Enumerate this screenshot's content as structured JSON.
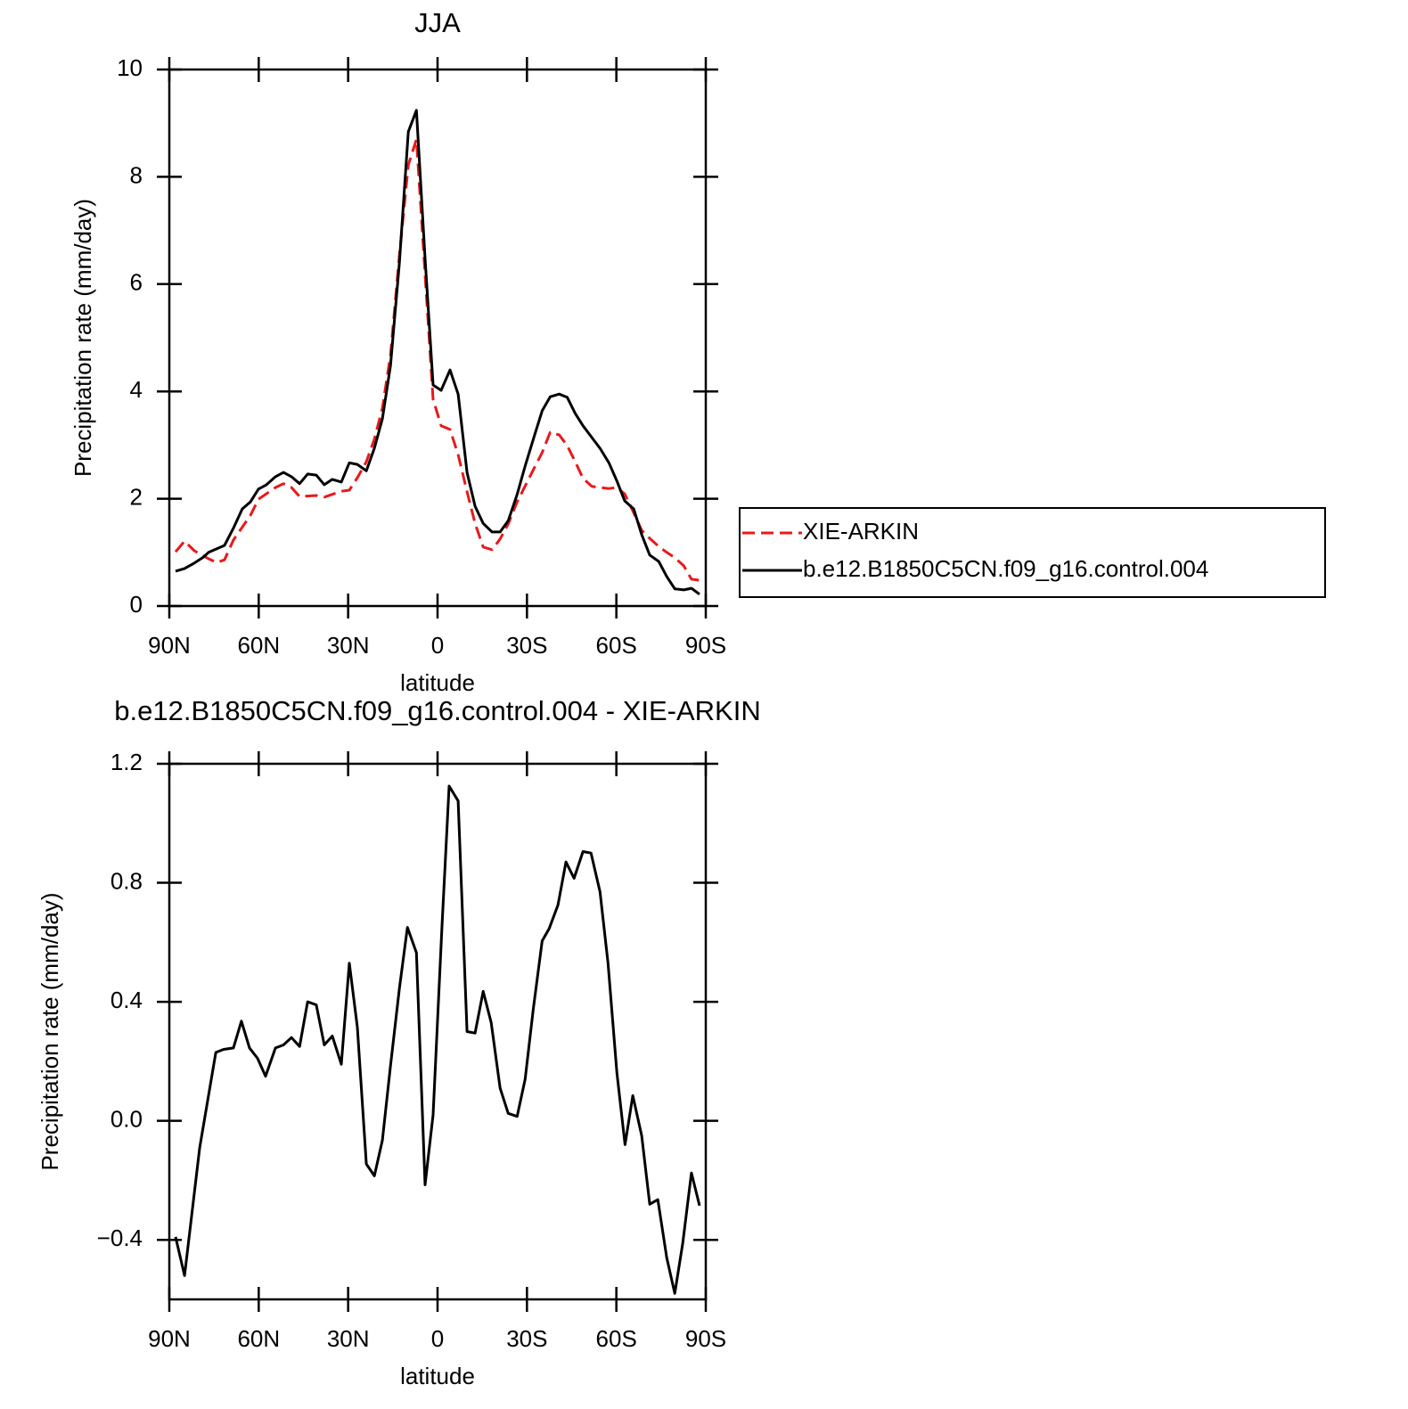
{
  "chart_data": [
    {
      "type": "line",
      "title": "JJA",
      "xlabel": "latitude",
      "ylabel": "Precipitation rate (mm/day)",
      "xlim": [
        90,
        -90
      ],
      "xticks": [
        {
          "value": 90,
          "label": "90N"
        },
        {
          "value": 60,
          "label": "60N"
        },
        {
          "value": 30,
          "label": "30N"
        },
        0,
        {
          "value": -30,
          "label": "30S"
        },
        {
          "value": -60,
          "label": "60S"
        },
        {
          "value": -90,
          "label": "90S"
        }
      ],
      "ylim": [
        0,
        10
      ],
      "yticks": [
        0,
        2,
        4,
        6,
        8,
        10
      ],
      "legend": "right",
      "series": [
        {
          "name": "XIE-ARKIN",
          "color": "#e8191c",
          "line_style": "dashed",
          "x": [
            87.9,
            84.9,
            81.6,
            76.8,
            74.1,
            71.5,
            68.5,
            62.8,
            60.1,
            54.4,
            51.7,
            49.0,
            46.3,
            40.7,
            38.0,
            32.3,
            29.6,
            26.9,
            23.9,
            21.2,
            18.5,
            15.8,
            12.8,
            9.8,
            7.1,
            4.2,
            1.5,
            -1.2,
            -4.2,
            -6.9,
            -9.9,
            -12.6,
            -15.3,
            -18.3,
            -21.0,
            -23.7,
            -26.7,
            -32.4,
            -35.1,
            -37.8,
            -40.8,
            -43.5,
            -46.2,
            -48.8,
            -51.8,
            -57.5,
            -60.1,
            -62.8,
            -65.8,
            -68.5,
            -71.2,
            -74.2,
            -76.9,
            -79.6,
            -82.6,
            -85.2,
            -87.9
          ],
          "values": [
            1.01,
            1.21,
            1.03,
            0.88,
            0.81,
            0.86,
            1.23,
            1.69,
            1.99,
            2.21,
            2.28,
            2.21,
            2.04,
            2.06,
            2.03,
            2.14,
            2.16,
            2.39,
            2.69,
            3.11,
            3.69,
            4.68,
            6.54,
            8.22,
            8.7,
            6.18,
            3.85,
            3.36,
            3.29,
            2.82,
            2.13,
            1.54,
            1.1,
            1.05,
            1.25,
            1.53,
            1.94,
            2.57,
            2.86,
            3.24,
            3.19,
            2.99,
            2.69,
            2.38,
            2.23,
            2.19,
            2.21,
            2.09,
            1.74,
            1.41,
            1.26,
            1.11,
            1.0,
            0.9,
            0.75,
            0.5,
            0.48
          ]
        },
        {
          "name": "b.e12.B1850C5CN.f09_g16.control.004",
          "color": "#000000",
          "line_style": "solid",
          "x": [
            87.9,
            84.9,
            81.6,
            78.6,
            76.8,
            71.5,
            68.5,
            65.5,
            62.8,
            60.1,
            57.4,
            54.4,
            51.7,
            49.0,
            46.3,
            43.6,
            40.7,
            38.0,
            35.3,
            32.3,
            29.6,
            26.9,
            23.9,
            21.2,
            18.5,
            15.8,
            12.8,
            9.8,
            7.1,
            4.2,
            1.5,
            -1.2,
            -4.2,
            -6.9,
            -9.9,
            -12.6,
            -15.3,
            -18.3,
            -21.0,
            -23.7,
            -26.7,
            -29.4,
            -32.4,
            -35.1,
            -37.8,
            -40.8,
            -43.5,
            -46.2,
            -48.8,
            -51.8,
            -54.5,
            -57.5,
            -60.1,
            -62.8,
            -65.8,
            -68.5,
            -71.2,
            -74.2,
            -76.9,
            -79.6,
            -82.6,
            -85.2,
            -87.9
          ],
          "values": [
            0.65,
            0.7,
            0.8,
            0.91,
            1.0,
            1.13,
            1.45,
            1.81,
            1.94,
            2.18,
            2.26,
            2.41,
            2.49,
            2.41,
            2.28,
            2.46,
            2.44,
            2.26,
            2.36,
            2.31,
            2.67,
            2.64,
            2.52,
            2.94,
            3.49,
            4.48,
            6.4,
            8.84,
            9.24,
            6.48,
            4.12,
            4.02,
            4.4,
            3.95,
            2.49,
            1.86,
            1.54,
            1.38,
            1.38,
            1.59,
            2.08,
            2.61,
            3.16,
            3.64,
            3.9,
            3.95,
            3.89,
            3.59,
            3.36,
            3.14,
            2.94,
            2.67,
            2.34,
            1.96,
            1.81,
            1.33,
            0.95,
            0.83,
            0.55,
            0.32,
            0.3,
            0.33,
            0.22
          ]
        }
      ]
    },
    {
      "type": "line",
      "title": "b.e12.B1850C5CN.f09_g16.control.004 - XIE-ARKIN",
      "xlabel": "latitude",
      "ylabel": "Precipitation rate (mm/day)",
      "xlim": [
        90,
        -90
      ],
      "xticks": [
        {
          "value": 90,
          "label": "90N"
        },
        {
          "value": 60,
          "label": "60N"
        },
        {
          "value": 30,
          "label": "30N"
        },
        0,
        {
          "value": -30,
          "label": "30S"
        },
        {
          "value": -60,
          "label": "60S"
        },
        {
          "value": -90,
          "label": "90S"
        }
      ],
      "ylim": [
        -0.6,
        1.2
      ],
      "yticks": [
        {
          "value": -0.4,
          "label": "−0.4"
        },
        {
          "value": 0,
          "label": "0.0"
        },
        0.4,
        0.8,
        1.2
      ],
      "series": [
        {
          "color": "#000000",
          "line_style": "solid",
          "x": [
            87.9,
            84.9,
            79.8,
            74.4,
            71.8,
            68.5,
            65.8,
            63.1,
            60.4,
            57.7,
            54.4,
            51.7,
            49.0,
            46.3,
            43.6,
            40.7,
            38.0,
            35.3,
            32.3,
            29.6,
            26.9,
            23.9,
            21.2,
            18.5,
            15.8,
            12.8,
            10.1,
            7.1,
            4.2,
            1.5,
            -1.5,
            -3.9,
            -6.9,
            -9.9,
            -12.6,
            -15.3,
            -18.0,
            -21.0,
            -23.7,
            -26.7,
            -29.4,
            -32.1,
            -35.1,
            -37.4,
            -40.4,
            -43.1,
            -45.8,
            -48.8,
            -51.5,
            -54.5,
            -57.2,
            -60.2,
            -62.9,
            -65.5,
            -68.5,
            -71.2,
            -73.9,
            -76.9,
            -79.6,
            -82.3,
            -85.2,
            -87.9
          ],
          "values": [
            -0.39,
            -0.52,
            -0.09,
            0.23,
            0.24,
            0.245,
            0.335,
            0.245,
            0.21,
            0.15,
            0.245,
            0.255,
            0.28,
            0.25,
            0.4,
            0.39,
            0.255,
            0.285,
            0.19,
            0.53,
            0.315,
            -0.145,
            -0.185,
            -0.065,
            0.185,
            0.445,
            0.65,
            0.565,
            -0.215,
            0.02,
            0.655,
            1.125,
            1.075,
            0.3,
            0.295,
            0.435,
            0.33,
            0.11,
            0.025,
            0.015,
            0.14,
            0.375,
            0.605,
            0.645,
            0.725,
            0.87,
            0.815,
            0.905,
            0.9,
            0.77,
            0.53,
            0.16,
            -0.08,
            0.085,
            -0.05,
            -0.28,
            -0.265,
            -0.46,
            -0.58,
            -0.41,
            -0.175,
            -0.285
          ]
        }
      ]
    }
  ]
}
